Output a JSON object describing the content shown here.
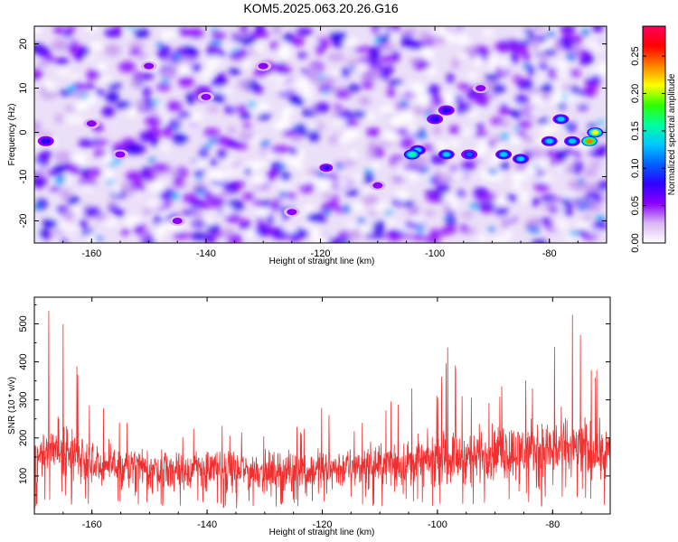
{
  "page": {
    "title": "KOM5.2025.063.20.26.G16"
  },
  "chart_data": [
    {
      "type": "heatmap",
      "name": "spectrogram",
      "xlabel": "Height of straight line (km)",
      "ylabel": "Frequency (Hz)",
      "xlim": [
        -170,
        -70
      ],
      "ylim": [
        -25,
        24
      ],
      "x_ticks": [
        "-160",
        "-140",
        "-120",
        "-100",
        "-80"
      ],
      "x_tick_values": [
        -160,
        -140,
        -120,
        -100,
        -80
      ],
      "y_ticks": [
        "-20",
        "-10",
        "0",
        "10",
        "20"
      ],
      "y_tick_values": [
        -20,
        -10,
        0,
        10,
        20
      ],
      "colorbar": {
        "label": "Normalized spectral amplitude",
        "range": [
          0,
          0.29
        ],
        "ticks": [
          "0.00",
          "0.05",
          "0.10",
          "0.15",
          "0.20",
          "0.25"
        ],
        "tick_values": [
          0,
          0.05,
          0.1,
          0.15,
          0.2,
          0.25
        ],
        "colormap": [
          "#ffffff",
          "#d9b8f2",
          "#8b00ff",
          "#3000ff",
          "#0060ff",
          "#00c8ff",
          "#00ffa0",
          "#30ff00",
          "#ffff00",
          "#ff8000",
          "#ff0000",
          "#ff0060"
        ]
      },
      "features": [
        {
          "x": -98,
          "y": -5,
          "amplitude": 0.14
        },
        {
          "x": -103,
          "y": -4,
          "amplitude": 0.12
        },
        {
          "x": -88,
          "y": -5,
          "amplitude": 0.14
        },
        {
          "x": -85,
          "y": -6,
          "amplitude": 0.14
        },
        {
          "x": -80,
          "y": -2,
          "amplitude": 0.12
        },
        {
          "x": -76,
          "y": -2,
          "amplitude": 0.14
        },
        {
          "x": -73,
          "y": -2,
          "amplitude": 0.24
        },
        {
          "x": -72,
          "y": 0,
          "amplitude": 0.2
        },
        {
          "x": -78,
          "y": 3,
          "amplitude": 0.12
        },
        {
          "x": -104,
          "y": -5,
          "amplitude": 0.17
        },
        {
          "x": -94,
          "y": -5,
          "amplitude": 0.1
        },
        {
          "x": -168,
          "y": -2,
          "amplitude": 0.09
        },
        {
          "x": -100,
          "y": 3,
          "amplitude": 0.09
        },
        {
          "x": -98,
          "y": 5,
          "amplitude": 0.09
        },
        {
          "x": -160,
          "y": 2,
          "amplitude": 0.06
        },
        {
          "x": -155,
          "y": -5,
          "amplitude": 0.06
        },
        {
          "x": -140,
          "y": 8,
          "amplitude": 0.05
        },
        {
          "x": -130,
          "y": 15,
          "amplitude": 0.05
        },
        {
          "x": -119,
          "y": -8,
          "amplitude": 0.08
        },
        {
          "x": -150,
          "y": 15,
          "amplitude": 0.05
        },
        {
          "x": -110,
          "y": -12,
          "amplitude": 0.05
        },
        {
          "x": -125,
          "y": -18,
          "amplitude": 0.05
        },
        {
          "x": -145,
          "y": -20,
          "amplitude": 0.05
        },
        {
          "x": -92,
          "y": 10,
          "amplitude": 0.05
        }
      ]
    },
    {
      "type": "line",
      "name": "snr",
      "xlabel": "Height of straight line (km)",
      "ylabel": "SNR (10 * v/v)",
      "xlim": [
        -170,
        -70
      ],
      "ylim": [
        0,
        570
      ],
      "x_ticks": [
        "-160",
        "-140",
        "-120",
        "-100",
        "-80"
      ],
      "x_tick_values": [
        -160,
        -140,
        -120,
        -100,
        -80
      ],
      "y_ticks": [
        "100",
        "200",
        "300",
        "400",
        "500"
      ],
      "y_tick_values": [
        100,
        200,
        300,
        400,
        500
      ],
      "color": "#f03030",
      "series": [
        {
          "x": [
            -170,
            -168,
            -166,
            -164,
            -162,
            -160,
            -158,
            -156,
            -154,
            -152,
            -150,
            -148,
            -146,
            -144,
            -142,
            -140,
            -138,
            -136,
            -134,
            -132,
            -130,
            -128,
            -126,
            -124,
            -122,
            -120,
            -118,
            -116,
            -114,
            -112,
            -110,
            -108,
            -106,
            -104,
            -102,
            -100,
            -98,
            -96,
            -94,
            -92,
            -90,
            -88,
            -86,
            -84,
            -82,
            -80,
            -78,
            -76,
            -74,
            -72,
            -70
          ],
          "mean": [
            150,
            160,
            170,
            160,
            150,
            140,
            130,
            125,
            120,
            120,
            118,
            118,
            120,
            118,
            118,
            118,
            115,
            115,
            115,
            115,
            112,
            115,
            115,
            115,
            118,
            118,
            120,
            120,
            122,
            125,
            128,
            130,
            135,
            138,
            140,
            145,
            148,
            150,
            155,
            158,
            160,
            165,
            165,
            170,
            170,
            175,
            175,
            172,
            170,
            165,
            160
          ],
          "max": [
            240,
            560,
            570,
            540,
            380,
            330,
            310,
            300,
            240,
            230,
            240,
            240,
            230,
            220,
            230,
            250,
            270,
            220,
            240,
            230,
            230,
            250,
            240,
            240,
            250,
            290,
            250,
            260,
            240,
            250,
            280,
            300,
            330,
            340,
            380,
            310,
            480,
            330,
            320,
            330,
            350,
            380,
            400,
            380,
            380,
            420,
            560,
            550,
            440,
            400,
            320
          ],
          "min": [
            10,
            20,
            30,
            20,
            15,
            10,
            15,
            20,
            20,
            15,
            15,
            20,
            15,
            10,
            10,
            20,
            15,
            15,
            10,
            15,
            15,
            10,
            15,
            20,
            15,
            20,
            15,
            15,
            20,
            15,
            15,
            20,
            20,
            15,
            15,
            20,
            20,
            15,
            20,
            20,
            20,
            15,
            20,
            20,
            15,
            15,
            20,
            15,
            20,
            20,
            20
          ]
        }
      ]
    }
  ]
}
